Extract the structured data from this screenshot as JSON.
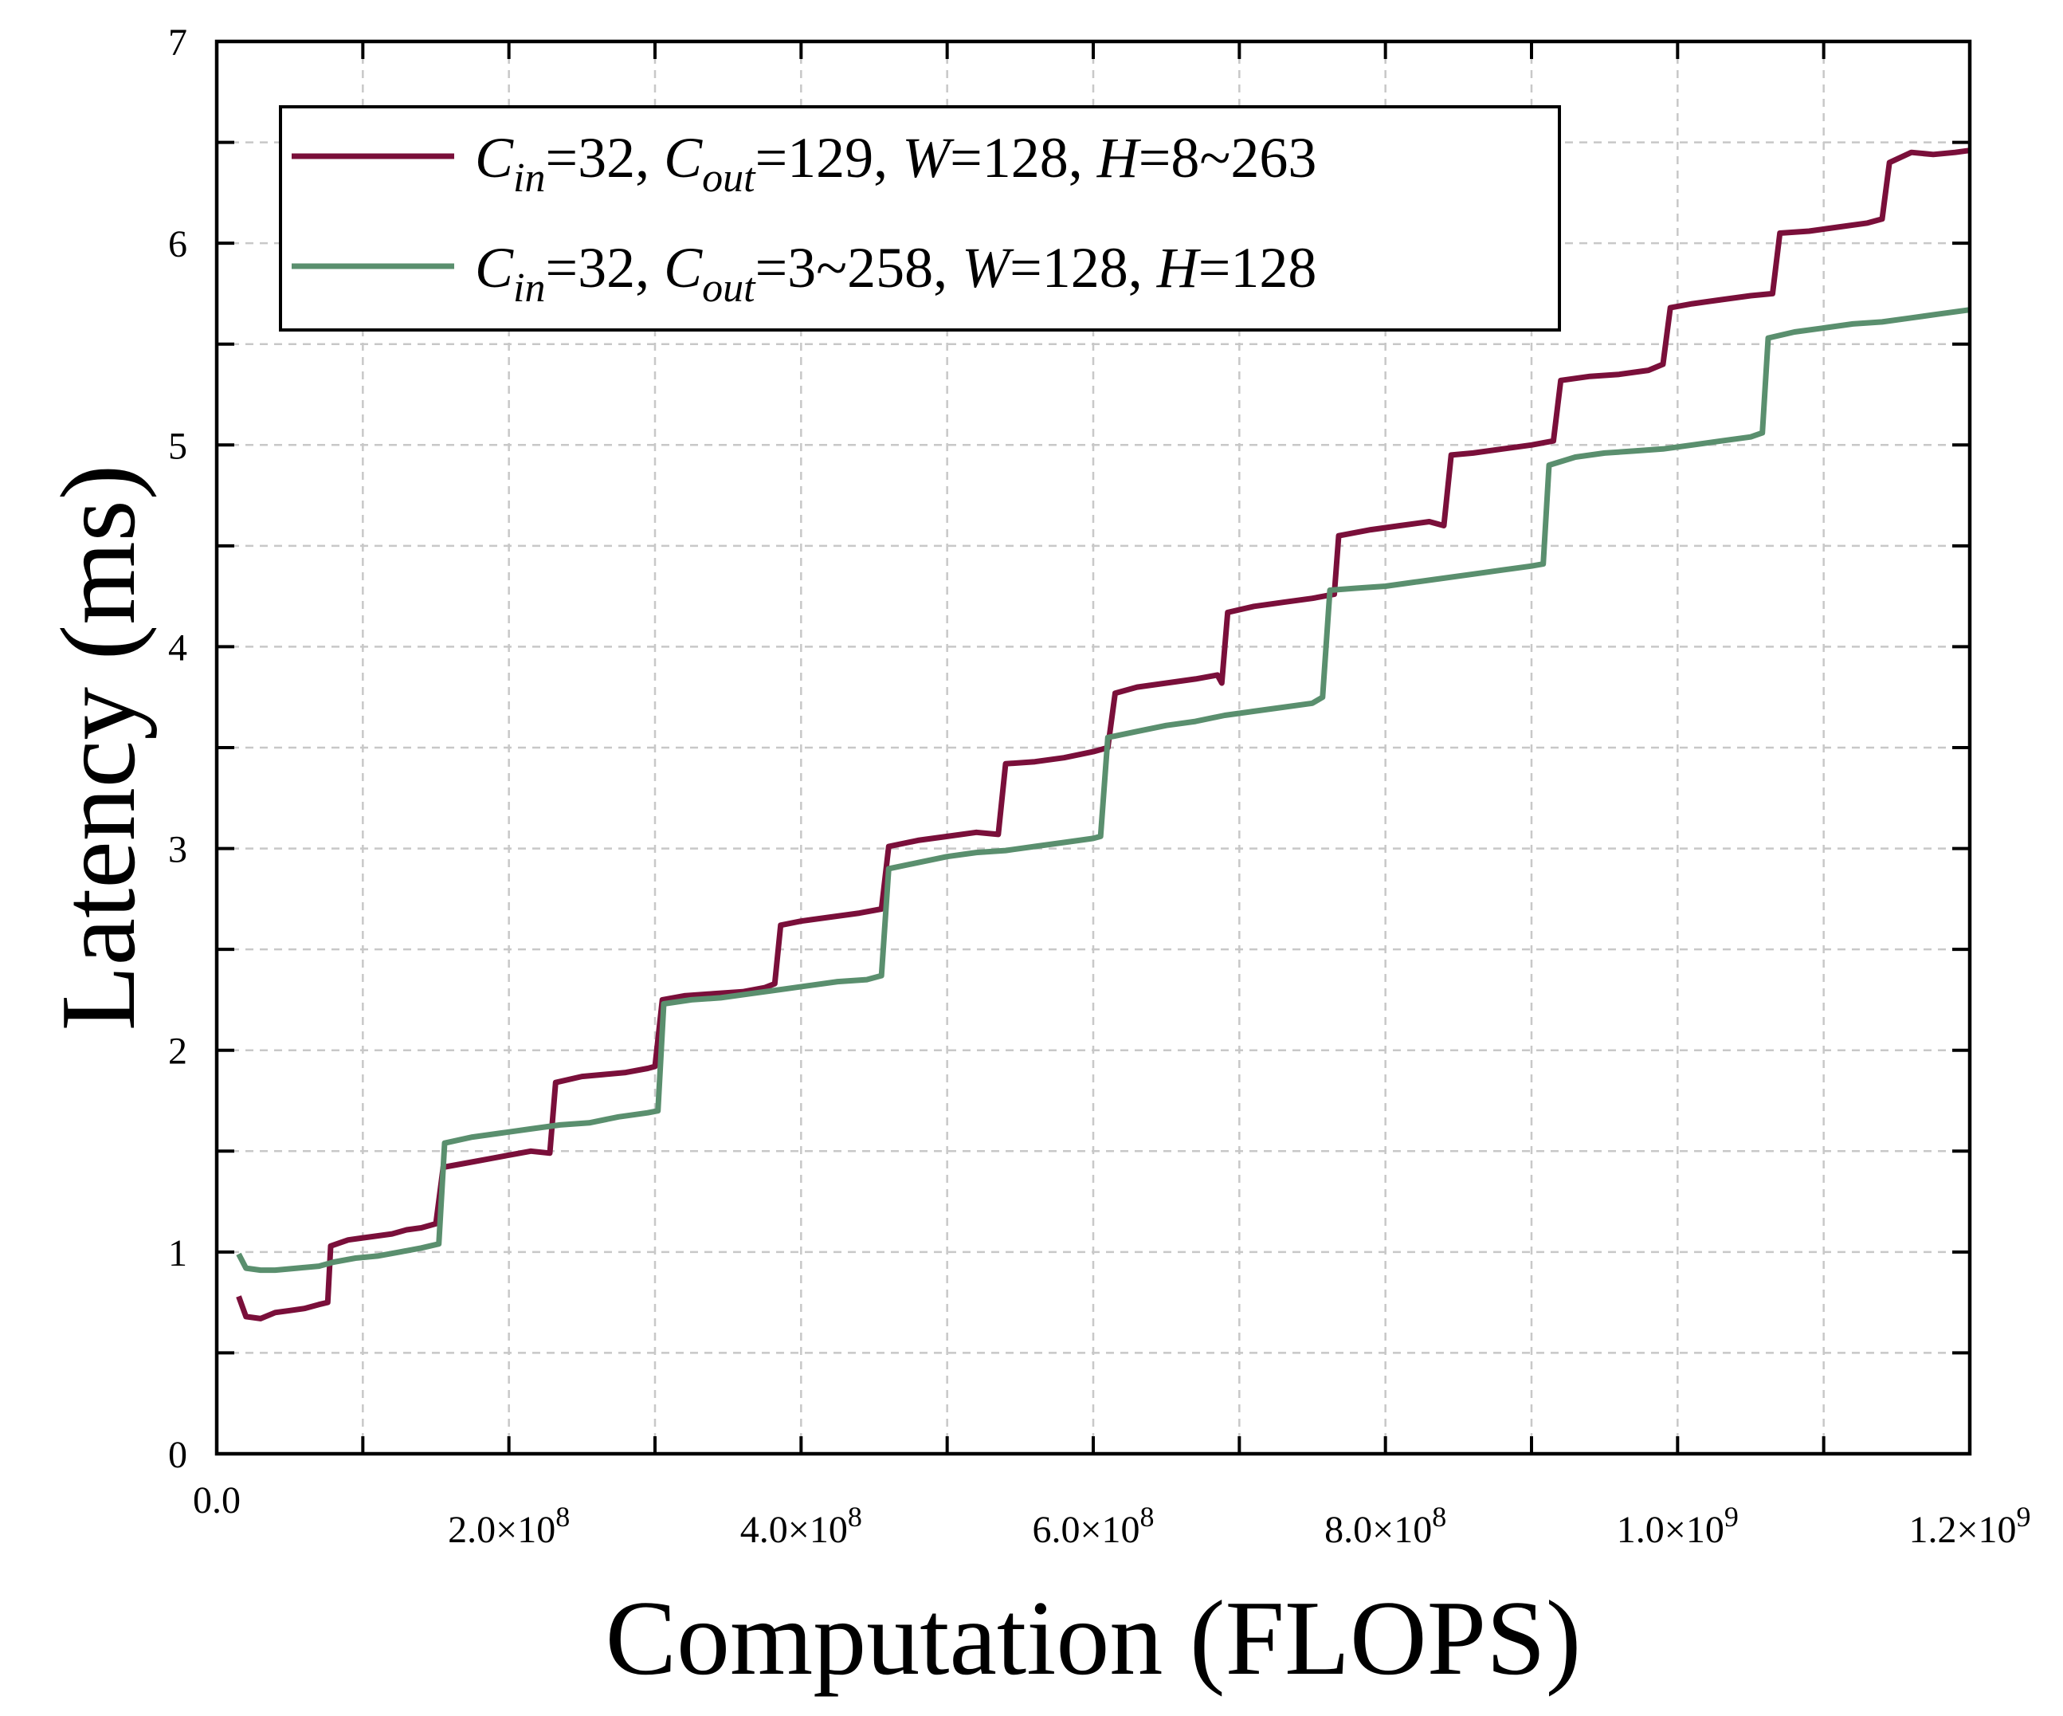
{
  "chart_data": {
    "type": "line",
    "xlabel": "Computation (FLOPS)",
    "ylabel": "Latency (ms)",
    "xlim": [
      0,
      1200000000
    ],
    "ylim": [
      0,
      7
    ],
    "grid": true,
    "legend_position": "top-left",
    "x_ticks": [
      {
        "value": 0,
        "label": "0.0",
        "exp": ""
      },
      {
        "value": 200000000,
        "label": "2.0×10",
        "exp": "8"
      },
      {
        "value": 400000000,
        "label": "4.0×10",
        "exp": "8"
      },
      {
        "value": 600000000,
        "label": "6.0×10",
        "exp": "8"
      },
      {
        "value": 800000000,
        "label": "8.0×10",
        "exp": "8"
      },
      {
        "value": 1000000000,
        "label": "1.0×10",
        "exp": "9"
      },
      {
        "value": 1200000000,
        "label": "1.2×10",
        "exp": "9"
      }
    ],
    "y_ticks": [
      {
        "value": 0,
        "label": "0"
      },
      {
        "value": 1,
        "label": "1"
      },
      {
        "value": 2,
        "label": "2"
      },
      {
        "value": 3,
        "label": "3"
      },
      {
        "value": 4,
        "label": "4"
      },
      {
        "value": 5,
        "label": "5"
      },
      {
        "value": 6,
        "label": "6"
      },
      {
        "value": 7,
        "label": "7"
      }
    ],
    "series": [
      {
        "name": "C_in=32, C_out=129, W=128, H=8~263",
        "legend_parts": [
          {
            "t": "C",
            "i": true
          },
          {
            "t": "in",
            "i": true,
            "sub": true
          },
          {
            "t": "=32, "
          },
          {
            "t": "C",
            "i": true
          },
          {
            "t": "out",
            "i": true,
            "sub": true
          },
          {
            "t": "=129, "
          },
          {
            "t": "W",
            "i": true
          },
          {
            "t": "=128, "
          },
          {
            "t": "H",
            "i": true
          },
          {
            "t": "=8~263"
          }
        ],
        "color": "#7a0f3a",
        "points": [
          [
            15000000,
            0.78
          ],
          [
            20000000,
            0.68
          ],
          [
            30000000,
            0.67
          ],
          [
            40000000,
            0.7
          ],
          [
            50000000,
            0.71
          ],
          [
            60000000,
            0.72
          ],
          [
            70000000,
            0.74
          ],
          [
            76000000,
            0.75
          ],
          [
            78000000,
            1.03
          ],
          [
            90000000,
            1.06
          ],
          [
            100000000,
            1.07
          ],
          [
            110000000,
            1.08
          ],
          [
            120000000,
            1.09
          ],
          [
            130000000,
            1.11
          ],
          [
            140000000,
            1.12
          ],
          [
            150000000,
            1.14
          ],
          [
            155000000,
            1.42
          ],
          [
            170000000,
            1.44
          ],
          [
            185000000,
            1.46
          ],
          [
            200000000,
            1.48
          ],
          [
            215000000,
            1.5
          ],
          [
            228000000,
            1.49
          ],
          [
            232000000,
            1.84
          ],
          [
            250000000,
            1.87
          ],
          [
            265000000,
            1.88
          ],
          [
            280000000,
            1.89
          ],
          [
            295000000,
            1.91
          ],
          [
            300000000,
            1.92
          ],
          [
            305000000,
            2.25
          ],
          [
            320000000,
            2.27
          ],
          [
            340000000,
            2.28
          ],
          [
            360000000,
            2.29
          ],
          [
            375000000,
            2.31
          ],
          [
            382000000,
            2.33
          ],
          [
            386000000,
            2.62
          ],
          [
            400000000,
            2.64
          ],
          [
            420000000,
            2.66
          ],
          [
            440000000,
            2.68
          ],
          [
            455000000,
            2.7
          ],
          [
            460000000,
            3.01
          ],
          [
            480000000,
            3.04
          ],
          [
            500000000,
            3.06
          ],
          [
            520000000,
            3.08
          ],
          [
            535000000,
            3.07
          ],
          [
            540000000,
            3.42
          ],
          [
            560000000,
            3.43
          ],
          [
            580000000,
            3.45
          ],
          [
            600000000,
            3.48
          ],
          [
            610000000,
            3.5
          ],
          [
            615000000,
            3.77
          ],
          [
            630000000,
            3.8
          ],
          [
            650000000,
            3.82
          ],
          [
            670000000,
            3.84
          ],
          [
            685000000,
            3.86
          ],
          [
            688000000,
            3.82
          ],
          [
            692000000,
            4.17
          ],
          [
            710000000,
            4.2
          ],
          [
            730000000,
            4.22
          ],
          [
            750000000,
            4.24
          ],
          [
            765000000,
            4.26
          ],
          [
            768000000,
            4.55
          ],
          [
            790000000,
            4.58
          ],
          [
            810000000,
            4.6
          ],
          [
            830000000,
            4.62
          ],
          [
            840000000,
            4.6
          ],
          [
            845000000,
            4.95
          ],
          [
            860000000,
            4.96
          ],
          [
            880000000,
            4.98
          ],
          [
            900000000,
            5.0
          ],
          [
            915000000,
            5.02
          ],
          [
            920000000,
            5.32
          ],
          [
            940000000,
            5.34
          ],
          [
            960000000,
            5.35
          ],
          [
            980000000,
            5.37
          ],
          [
            990000000,
            5.4
          ],
          [
            995000000,
            5.68
          ],
          [
            1010000000,
            5.7
          ],
          [
            1030000000,
            5.72
          ],
          [
            1050000000,
            5.74
          ],
          [
            1065000000,
            5.75
          ],
          [
            1070000000,
            6.05
          ],
          [
            1090000000,
            6.06
          ],
          [
            1110000000,
            6.08
          ],
          [
            1130000000,
            6.1
          ],
          [
            1140000000,
            6.12
          ],
          [
            1145000000,
            6.4
          ],
          [
            1160000000,
            6.45
          ],
          [
            1175000000,
            6.44
          ],
          [
            1190000000,
            6.45
          ],
          [
            1200000000,
            6.46
          ]
        ]
      },
      {
        "name": "C_in=32, C_out=3~258, W=128, H=128",
        "legend_parts": [
          {
            "t": "C",
            "i": true
          },
          {
            "t": "in",
            "i": true,
            "sub": true
          },
          {
            "t": "=32, "
          },
          {
            "t": "C",
            "i": true
          },
          {
            "t": "out",
            "i": true,
            "sub": true
          },
          {
            "t": "=3~258, "
          },
          {
            "t": "W",
            "i": true
          },
          {
            "t": "=128, "
          },
          {
            "t": "H",
            "i": true
          },
          {
            "t": "=128"
          }
        ],
        "color": "#5a8f6e",
        "points": [
          [
            15000000,
            0.99
          ],
          [
            20000000,
            0.92
          ],
          [
            30000000,
            0.91
          ],
          [
            40000000,
            0.91
          ],
          [
            55000000,
            0.92
          ],
          [
            70000000,
            0.93
          ],
          [
            80000000,
            0.95
          ],
          [
            95000000,
            0.97
          ],
          [
            110000000,
            0.98
          ],
          [
            125000000,
            1.0
          ],
          [
            140000000,
            1.02
          ],
          [
            152000000,
            1.04
          ],
          [
            156000000,
            1.54
          ],
          [
            175000000,
            1.57
          ],
          [
            195000000,
            1.59
          ],
          [
            215000000,
            1.61
          ],
          [
            235000000,
            1.63
          ],
          [
            255000000,
            1.64
          ],
          [
            275000000,
            1.67
          ],
          [
            295000000,
            1.69
          ],
          [
            302000000,
            1.7
          ],
          [
            306000000,
            2.23
          ],
          [
            325000000,
            2.25
          ],
          [
            345000000,
            2.26
          ],
          [
            365000000,
            2.28
          ],
          [
            385000000,
            2.3
          ],
          [
            405000000,
            2.32
          ],
          [
            425000000,
            2.34
          ],
          [
            445000000,
            2.35
          ],
          [
            455000000,
            2.37
          ],
          [
            460000000,
            2.9
          ],
          [
            480000000,
            2.93
          ],
          [
            500000000,
            2.96
          ],
          [
            520000000,
            2.98
          ],
          [
            540000000,
            2.99
          ],
          [
            560000000,
            3.01
          ],
          [
            580000000,
            3.03
          ],
          [
            600000000,
            3.05
          ],
          [
            605000000,
            3.06
          ],
          [
            610000000,
            3.55
          ],
          [
            630000000,
            3.58
          ],
          [
            650000000,
            3.61
          ],
          [
            670000000,
            3.63
          ],
          [
            690000000,
            3.66
          ],
          [
            710000000,
            3.68
          ],
          [
            730000000,
            3.7
          ],
          [
            750000000,
            3.72
          ],
          [
            757000000,
            3.75
          ],
          [
            762000000,
            4.28
          ],
          [
            780000000,
            4.29
          ],
          [
            800000000,
            4.3
          ],
          [
            820000000,
            4.32
          ],
          [
            840000000,
            4.34
          ],
          [
            860000000,
            4.36
          ],
          [
            880000000,
            4.38
          ],
          [
            900000000,
            4.4
          ],
          [
            908000000,
            4.41
          ],
          [
            912000000,
            4.9
          ],
          [
            930000000,
            4.94
          ],
          [
            950000000,
            4.96
          ],
          [
            970000000,
            4.97
          ],
          [
            990000000,
            4.98
          ],
          [
            1010000000,
            5.0
          ],
          [
            1030000000,
            5.02
          ],
          [
            1050000000,
            5.04
          ],
          [
            1058000000,
            5.06
          ],
          [
            1062000000,
            5.53
          ],
          [
            1080000000,
            5.56
          ],
          [
            1100000000,
            5.58
          ],
          [
            1120000000,
            5.6
          ],
          [
            1140000000,
            5.61
          ],
          [
            1160000000,
            5.63
          ],
          [
            1180000000,
            5.65
          ],
          [
            1200000000,
            5.67
          ]
        ]
      }
    ]
  }
}
